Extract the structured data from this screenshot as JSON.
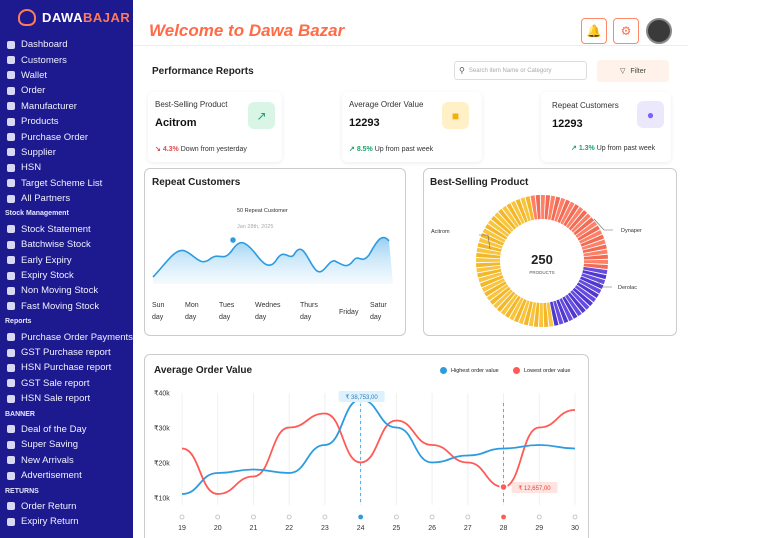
{
  "brand": {
    "part1": "DAWA",
    "part2": "BAJAR"
  },
  "sidebar": {
    "items": [
      {
        "label": "Dashboard",
        "icon": "grid-icon"
      },
      {
        "label": "Customers",
        "icon": "user-icon"
      },
      {
        "label": "Wallet",
        "icon": "wallet-icon"
      },
      {
        "label": "Order",
        "icon": "order-icon"
      },
      {
        "label": "Manufacturer",
        "icon": "factory-icon"
      },
      {
        "label": "Products",
        "icon": "cart-icon"
      },
      {
        "label": "Purchase Order",
        "icon": "cart-icon"
      },
      {
        "label": "Supplier",
        "icon": "user-icon"
      },
      {
        "label": "HSN",
        "icon": "search-icon"
      },
      {
        "label": "Target Scheme List",
        "icon": "list-icon"
      },
      {
        "label": "All Partners",
        "icon": "users-icon"
      }
    ],
    "stock_head": "Stock Management",
    "stock_items": [
      {
        "label": "Stock Statement",
        "icon": "trend-icon"
      },
      {
        "label": "Batchwise Stock",
        "icon": "box-icon"
      },
      {
        "label": "Early Expiry",
        "icon": "clock-icon"
      },
      {
        "label": "Expiry Stock",
        "icon": "hourglass-icon"
      },
      {
        "label": "Non Moving Stock",
        "icon": "pause-icon"
      },
      {
        "label": "Fast Moving Stock",
        "icon": "fast-icon"
      }
    ],
    "reports_head": "Reports",
    "report_items": [
      {
        "label": "Purchase Order Payments",
        "icon": "card-icon"
      },
      {
        "label": "GST Purchase report",
        "icon": "gear-icon"
      },
      {
        "label": "HSN Purchase report",
        "icon": "search-icon"
      },
      {
        "label": "GST Sale report",
        "icon": "doc-icon"
      },
      {
        "label": "HSN Sale report",
        "icon": "doc-icon"
      }
    ],
    "banner_head": "BANNER",
    "banner_items": [
      {
        "label": "Deal of the Day",
        "icon": "tag-icon"
      },
      {
        "label": "Super Saving",
        "icon": "piggy-icon"
      },
      {
        "label": "New Arrivals",
        "icon": "new-icon"
      },
      {
        "label": "Advertisement",
        "icon": "megaphone-icon"
      }
    ],
    "returns_head": "RETURNS",
    "return_items": [
      {
        "label": "Order Return",
        "icon": "return-icon"
      },
      {
        "label": "Expiry Return",
        "icon": "return-icon"
      }
    ]
  },
  "header": {
    "welcome": "Welcome to Dawa Bazar"
  },
  "performance": {
    "title": "Performance Reports",
    "search_placeholder": "Search item Name or Category",
    "filter_label": "Filter",
    "cards": [
      {
        "label": "Best-Selling Product",
        "value": "Acitrom",
        "pct": "4.3%",
        "trend": "Down from yesterday",
        "dir": "down",
        "icon": "chart-icon",
        "color": "#d8f5e6"
      },
      {
        "label": "Average Order Value",
        "value": "12293",
        "pct": "8.5%",
        "trend": "Up from past week",
        "dir": "up",
        "icon": "box-icon",
        "color": "#fff0c8"
      },
      {
        "label": "Repeat Customers",
        "value": "12293",
        "pct": "1.3%",
        "trend": "Up from past week",
        "dir": "up",
        "icon": "users-icon",
        "color": "#ece8fb"
      }
    ]
  },
  "repeat_customers": {
    "title": "Repeat Customers",
    "tooltip_value": "50 Repeat Customer",
    "tooltip_date": "Jan 28th, 2025",
    "days": [
      "Sun day",
      "Mon day",
      "Tues day",
      "Wednes day",
      "Thurs day",
      "Friday",
      "Satur day"
    ]
  },
  "best_selling": {
    "title": "Best-Selling Product",
    "center_value": "250",
    "center_label": "PRODUCTS",
    "labels": [
      "Acitrom",
      "Dynaper",
      "Derolac"
    ]
  },
  "avg_order": {
    "title": "Average Order Value",
    "legend_high": "Highest order value",
    "legend_low": "Lowest order value",
    "high_value": "₹ 38,753,00",
    "low_value": "₹ 12,657,00",
    "yticks": [
      "₹40k",
      "₹30k",
      "₹20k",
      "₹10k"
    ],
    "xticks": [
      "19",
      "20",
      "21",
      "22",
      "23",
      "24",
      "25",
      "26",
      "27",
      "28",
      "29",
      "30"
    ]
  },
  "chart_data": [
    {
      "type": "area",
      "title": "Repeat Customers",
      "categories": [
        "Sunday",
        "Monday",
        "Tuesday",
        "Wednesday",
        "Thursday",
        "Friday",
        "Saturday"
      ]
    },
    {
      "type": "pie",
      "title": "Best-Selling Product",
      "series": [
        {
          "name": "Acitrom",
          "value": 50
        },
        {
          "name": "Dynaper",
          "value": 30
        },
        {
          "name": "Derolac",
          "value": 20
        }
      ]
    },
    {
      "type": "line",
      "title": "Average Order Value",
      "x": [
        19,
        20,
        21,
        22,
        23,
        24,
        25,
        26,
        27,
        28,
        29,
        30
      ],
      "series": [
        {
          "name": "Highest order value",
          "values": [
            11,
            17,
            18,
            17,
            25,
            38,
            30,
            20,
            22,
            24,
            25,
            24
          ]
        },
        {
          "name": "Lowest order value",
          "values": [
            24,
            11,
            16,
            30,
            34,
            20,
            32,
            25,
            20,
            13,
            30,
            35
          ]
        }
      ],
      "ylim": [
        5,
        45
      ],
      "colors": {
        "high": "#2d9be0",
        "low": "#ff5a55"
      }
    }
  ]
}
